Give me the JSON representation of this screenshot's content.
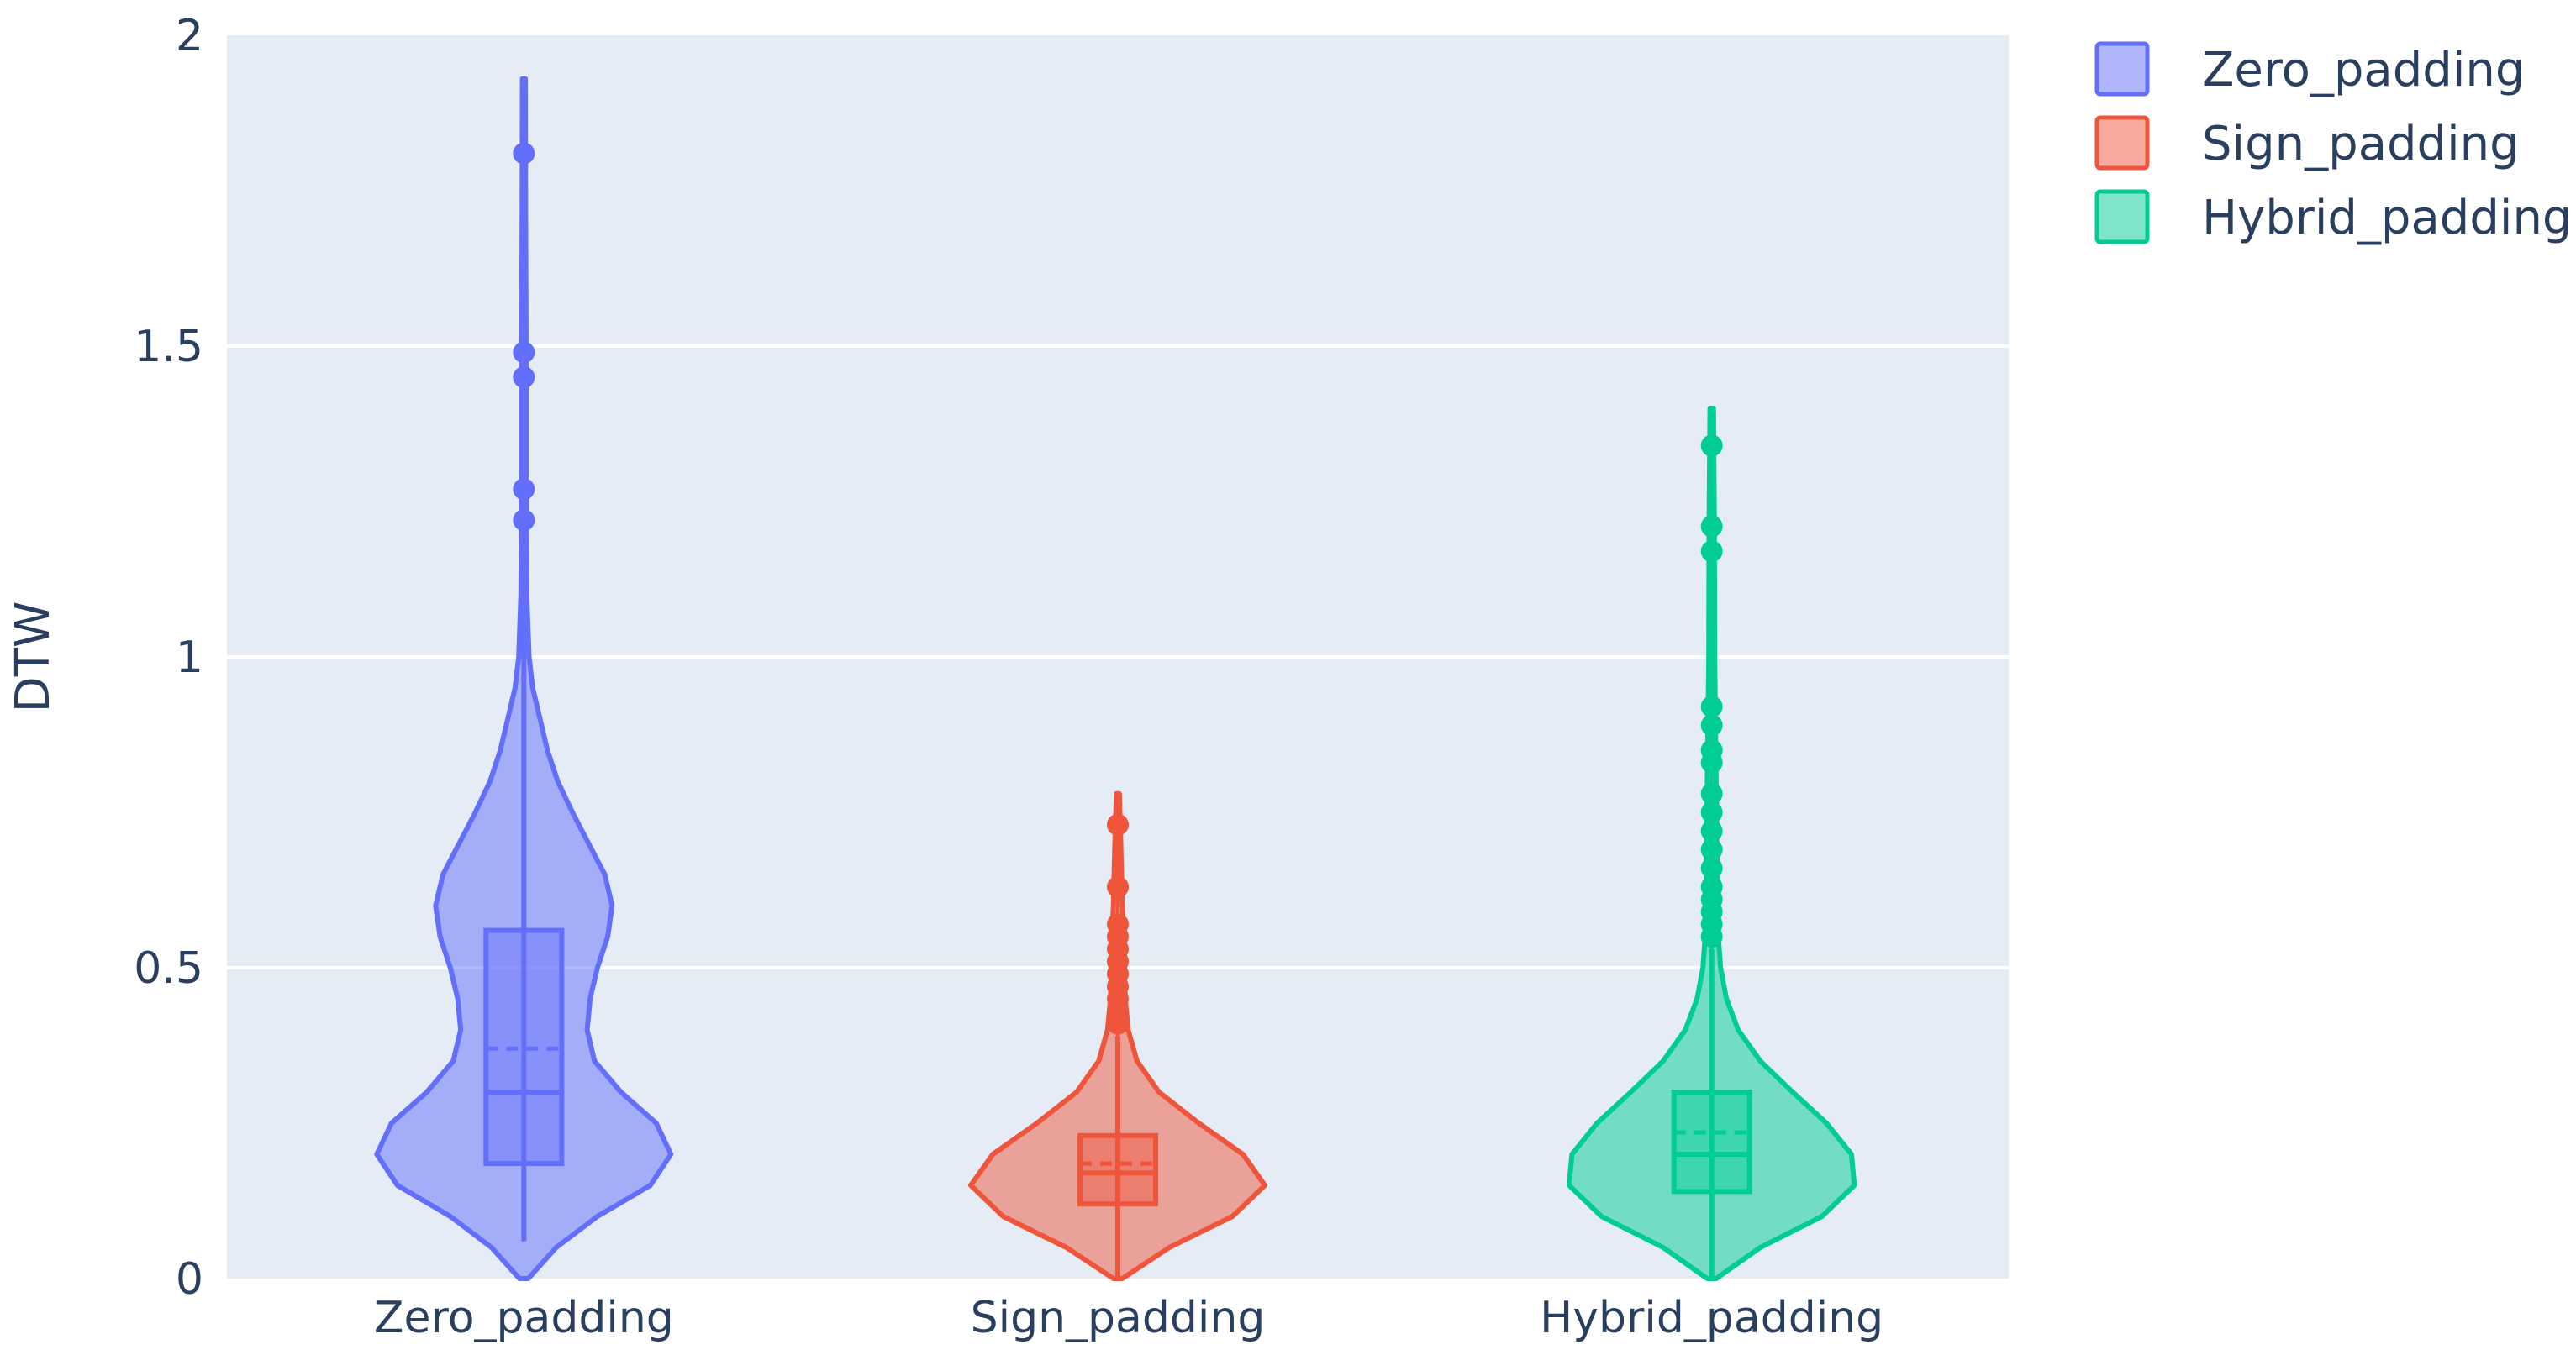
{
  "chart_data": {
    "type": "violin",
    "title": "",
    "xlabel": "",
    "ylabel": "DTW",
    "ylim": [
      0,
      2
    ],
    "yticks": [
      {
        "value": 0,
        "label": "0"
      },
      {
        "value": 0.5,
        "label": "0.5"
      },
      {
        "value": 1,
        "label": "1"
      },
      {
        "value": 1.5,
        "label": "1.5"
      },
      {
        "value": 2,
        "label": "2"
      }
    ],
    "grid": true,
    "legend_position": "top-right",
    "plot_background": "#e5ecf6",
    "categories": [
      "Zero_padding",
      "Sign_padding",
      "Hybrid_padding"
    ],
    "series": [
      {
        "name": "Zero_padding",
        "color": "#636efa",
        "min": 0.06,
        "q1": 0.185,
        "median": 0.3,
        "mean": 0.37,
        "q3": 0.56,
        "upper_fence": 1.1,
        "max": 1.93,
        "outliers": [
          1.81,
          1.49,
          1.45,
          1.27,
          1.22
        ],
        "density": [
          [
            0.0,
            0.03
          ],
          [
            0.05,
            0.22
          ],
          [
            0.1,
            0.5
          ],
          [
            0.15,
            0.86
          ],
          [
            0.2,
            1.0
          ],
          [
            0.25,
            0.9
          ],
          [
            0.3,
            0.66
          ],
          [
            0.35,
            0.48
          ],
          [
            0.4,
            0.43
          ],
          [
            0.45,
            0.45
          ],
          [
            0.5,
            0.5
          ],
          [
            0.55,
            0.57
          ],
          [
            0.6,
            0.6
          ],
          [
            0.65,
            0.55
          ],
          [
            0.7,
            0.44
          ],
          [
            0.75,
            0.33
          ],
          [
            0.8,
            0.23
          ],
          [
            0.85,
            0.16
          ],
          [
            0.9,
            0.11
          ],
          [
            0.95,
            0.06
          ],
          [
            1.0,
            0.035
          ],
          [
            1.1,
            0.02
          ],
          [
            1.3,
            0.015
          ],
          [
            1.5,
            0.015
          ],
          [
            1.7,
            0.012
          ],
          [
            1.93,
            0.01
          ]
        ]
      },
      {
        "name": "Sign_padding",
        "color": "#ef553b",
        "min": 0.0,
        "q1": 0.12,
        "median": 0.17,
        "mean": 0.185,
        "q3": 0.23,
        "upper_fence": 0.39,
        "max": 0.78,
        "outliers": [
          0.73,
          0.63,
          0.57,
          0.55,
          0.53,
          0.51,
          0.49,
          0.47,
          0.45,
          0.43,
          0.41
        ],
        "density": [
          [
            0.0,
            0.03
          ],
          [
            0.05,
            0.35
          ],
          [
            0.1,
            0.78
          ],
          [
            0.15,
            1.0
          ],
          [
            0.2,
            0.85
          ],
          [
            0.25,
            0.55
          ],
          [
            0.3,
            0.28
          ],
          [
            0.35,
            0.13
          ],
          [
            0.4,
            0.07
          ],
          [
            0.45,
            0.05
          ],
          [
            0.5,
            0.045
          ],
          [
            0.55,
            0.04
          ],
          [
            0.6,
            0.03
          ],
          [
            0.65,
            0.025
          ],
          [
            0.7,
            0.02
          ],
          [
            0.78,
            0.01
          ]
        ]
      },
      {
        "name": "Hybrid_padding",
        "color": "#00cc96",
        "min": 0.0,
        "q1": 0.14,
        "median": 0.2,
        "mean": 0.235,
        "q3": 0.3,
        "upper_fence": 0.53,
        "max": 1.4,
        "outliers": [
          1.34,
          1.21,
          1.17,
          0.92,
          0.89,
          0.85,
          0.83,
          0.78,
          0.75,
          0.72,
          0.69,
          0.66,
          0.63,
          0.61,
          0.59,
          0.57,
          0.55
        ],
        "density": [
          [
            0.0,
            0.03
          ],
          [
            0.05,
            0.33
          ],
          [
            0.1,
            0.75
          ],
          [
            0.15,
            0.97
          ],
          [
            0.2,
            0.95
          ],
          [
            0.25,
            0.78
          ],
          [
            0.3,
            0.55
          ],
          [
            0.35,
            0.33
          ],
          [
            0.4,
            0.18
          ],
          [
            0.45,
            0.1
          ],
          [
            0.5,
            0.06
          ],
          [
            0.55,
            0.045
          ],
          [
            0.6,
            0.04
          ],
          [
            0.7,
            0.035
          ],
          [
            0.8,
            0.03
          ],
          [
            0.9,
            0.025
          ],
          [
            1.0,
            0.02
          ],
          [
            1.2,
            0.018
          ],
          [
            1.4,
            0.012
          ]
        ]
      }
    ]
  }
}
